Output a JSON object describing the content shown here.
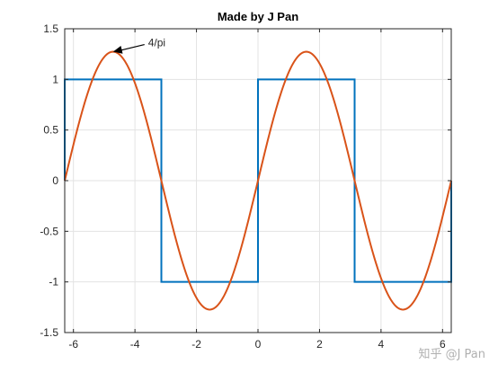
{
  "chart_data": {
    "type": "line",
    "title": "Made by J Pan",
    "xlabel": "",
    "ylabel": "",
    "xlim": [
      -6.2832,
      6.2832
    ],
    "ylim": [
      -1.5,
      1.5
    ],
    "xticks": [
      -6,
      -4,
      -2,
      0,
      2,
      4,
      6
    ],
    "xtick_labels": [
      "-6",
      "-4",
      "-2",
      "0",
      "2",
      "4",
      "6"
    ],
    "yticks": [
      1.5,
      1,
      0.5,
      0,
      -0.5,
      -1,
      -1.5
    ],
    "ytick_labels": [
      "1.5",
      "1",
      "0.5",
      "0",
      "-0.5",
      "-1",
      "-1.5"
    ],
    "grid": true,
    "series": [
      {
        "kind": "square-wave",
        "color": "#0072BD",
        "x": [
          -6.2832,
          -6.2832,
          -3.1416,
          -3.1416,
          0,
          0,
          3.1416,
          3.1416,
          6.2832,
          6.2832
        ],
        "y": [
          0,
          1,
          1,
          -1,
          -1,
          1,
          1,
          -1,
          -1,
          0
        ]
      },
      {
        "kind": "first-harmonic",
        "color": "#D95319",
        "function": "(4/pi)*sin(x)",
        "amplitude": 1.2732
      }
    ],
    "annotation": {
      "text": "4/pi",
      "x": -4.7124,
      "y": 1.2732
    }
  },
  "watermark": {
    "text": "知乎 @J Pan"
  }
}
